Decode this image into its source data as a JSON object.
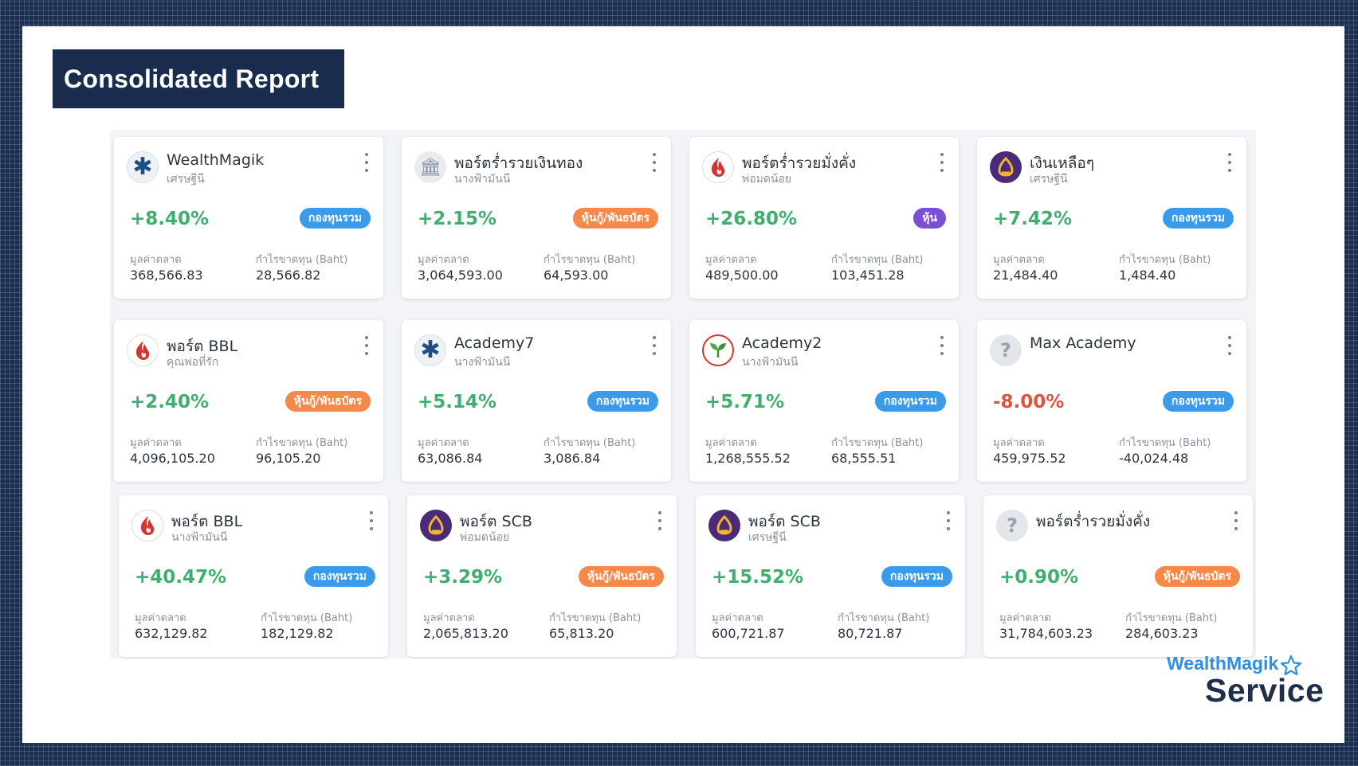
{
  "title": "Consolidated Report",
  "labels": {
    "market_value": "มูลค่าตลาด",
    "profit_loss": "กำไรขาดทุน (Baht)"
  },
  "cards": [
    {
      "name": "WealthMagik",
      "owner": "เศรษฐีนี",
      "icon": "asterisk-logo-icon",
      "return": "+8.40%",
      "badge": "กองทุนรวม",
      "market_value": "368,566.83",
      "profit_loss": "28,566.82"
    },
    {
      "name": "พอร์ตร่ำรวยเงินทอง",
      "owner": "นางฟ้ามันนี",
      "icon": "bank-icon",
      "return": "+2.15%",
      "badge": "หุ้นกู้/พันธบัตร",
      "market_value": "3,064,593.00",
      "profit_loss": "64,593.00"
    },
    {
      "name": "พอร์ตร่ำรวยมั่งคั่ง",
      "owner": "พ่อมดน้อย",
      "icon": "flame-logo-icon",
      "return": "+26.80%",
      "badge": "หุ้น",
      "market_value": "489,500.00",
      "profit_loss": "103,451.28"
    },
    {
      "name": "เงินเหลือๆ",
      "owner": "เศรษฐีนี",
      "icon": "scb-logo-icon",
      "return": "+7.42%",
      "badge": "กองทุนรวม",
      "market_value": "21,484.40",
      "profit_loss": "1,484.40"
    },
    {
      "name": "พอร์ต BBL",
      "owner": "คุณพ่อที่รัก",
      "icon": "flame-logo-icon",
      "return": "+2.40%",
      "badge": "หุ้นกู้/พันธบัตร",
      "market_value": "4,096,105.20",
      "profit_loss": "96,105.20"
    },
    {
      "name": "Academy7",
      "owner": "นางฟ้ามันนี",
      "icon": "asterisk-logo-icon",
      "return": "+5.14%",
      "badge": "กองทุนรวม",
      "market_value": "63,086.84",
      "profit_loss": "3,086.84"
    },
    {
      "name": "Academy2",
      "owner": "นางฟ้ามันนี",
      "icon": "leaf-logo-icon",
      "return": "+5.71%",
      "badge": "กองทุนรวม",
      "market_value": "1,268,555.52",
      "profit_loss": "68,555.51"
    },
    {
      "name": "Max Academy",
      "owner": "",
      "icon": "question-mark-icon",
      "return": "-8.00%",
      "badge": "กองทุนรวม",
      "market_value": "459,975.52",
      "profit_loss": "-40,024.48"
    },
    {
      "name": "พอร์ต BBL",
      "owner": "นางฟ้ามันนี",
      "icon": "flame-logo-icon",
      "return": "+40.47%",
      "badge": "กองทุนรวม",
      "market_value": "632,129.82",
      "profit_loss": "182,129.82"
    },
    {
      "name": "พอร์ต SCB",
      "owner": "พ่อมดน้อย",
      "icon": "scb-logo-icon",
      "return": "+3.29%",
      "badge": "หุ้นกู้/พันธบัตร",
      "market_value": "2,065,813.20",
      "profit_loss": "65,813.20"
    },
    {
      "name": "พอร์ต SCB",
      "owner": "เศรษฐีนี",
      "icon": "scb-logo-icon",
      "return": "+15.52%",
      "badge": "กองทุนรวม",
      "market_value": "600,721.87",
      "profit_loss": "80,721.87"
    },
    {
      "name": "พอร์ตร่ำรวยมั่งคั่ง",
      "owner": "",
      "icon": "question-mark-icon",
      "return": "+0.90%",
      "badge": "หุ้นกู้/พันธบัตร",
      "market_value": "31,784,603.23",
      "profit_loss": "284,603.23"
    }
  ],
  "badge_colors": {
    "กองทุนรวม": "#3a9bea",
    "หุ้นกู้/พันธบัตร": "#f5894a",
    "หุ้น": "#7a4fd6"
  },
  "colors": {
    "positive": "#3fae6e",
    "negative": "#e0533d",
    "title_bg": "#1a2c4e"
  },
  "brand": {
    "line1": "WealthMagik",
    "line2": "Service"
  }
}
